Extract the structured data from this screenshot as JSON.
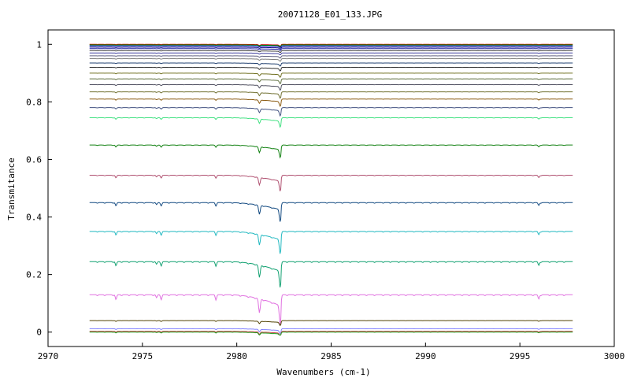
{
  "chart_data": {
    "type": "line",
    "title": "20071128_E01_133.JPG",
    "xlabel": "Wavenumbers (cm-1)",
    "ylabel": "Transmitance",
    "xlim": [
      2970,
      3000
    ],
    "ylim": [
      -0.05,
      1.05
    ],
    "xticks": [
      2970,
      2975,
      2980,
      2985,
      2990,
      2995,
      3000
    ],
    "xtick_labels": [
      "2970",
      "2975",
      "2980",
      "2985",
      "2990",
      "2995",
      "3000"
    ],
    "yticks": [
      0,
      0.2,
      0.4,
      0.6,
      0.8,
      1
    ],
    "ytick_labels": [
      "0",
      "0.2",
      "0.4",
      "0.6",
      "0.8",
      "1"
    ],
    "x_range_data": [
      2972.2,
      2997.8
    ],
    "grid": false,
    "legend": "none",
    "absorption_lines_cm1": [
      2973.6,
      2975.7,
      2976.0,
      2978.9,
      2981.2,
      2982.3,
      2996.0
    ],
    "series": [
      {
        "baseline": 1.0,
        "color": "#d00000"
      },
      {
        "baseline": 0.998,
        "color": "#00a000"
      },
      {
        "baseline": 0.995,
        "color": "#0000c0"
      },
      {
        "baseline": 0.99,
        "color": "#000080"
      },
      {
        "baseline": 0.985,
        "color": "#1a1aa0"
      },
      {
        "baseline": 0.978,
        "color": "#404040"
      },
      {
        "baseline": 0.97,
        "color": "#4040a0"
      },
      {
        "baseline": 0.96,
        "color": "#606080"
      },
      {
        "baseline": 0.95,
        "color": "#808080"
      },
      {
        "baseline": 0.935,
        "color": "#204070"
      },
      {
        "baseline": 0.92,
        "color": "#303030"
      },
      {
        "baseline": 0.9,
        "color": "#707020"
      },
      {
        "baseline": 0.88,
        "color": "#607040"
      },
      {
        "baseline": 0.86,
        "color": "#505060"
      },
      {
        "baseline": 0.835,
        "color": "#707030"
      },
      {
        "baseline": 0.81,
        "color": "#8a5a10"
      },
      {
        "baseline": 0.78,
        "color": "#405080"
      },
      {
        "baseline": 0.745,
        "color": "#40e080"
      },
      {
        "baseline": 0.65,
        "color": "#108010"
      },
      {
        "baseline": 0.545,
        "color": "#b05070"
      },
      {
        "baseline": 0.45,
        "color": "#104880"
      },
      {
        "baseline": 0.35,
        "color": "#20b8c0"
      },
      {
        "baseline": 0.245,
        "color": "#10a070"
      },
      {
        "baseline": 0.13,
        "color": "#e070e0"
      },
      {
        "baseline": 0.04,
        "color": "#504000"
      },
      {
        "baseline": 0.012,
        "color": "#8080ff"
      },
      {
        "baseline": 0.003,
        "color": "#c04040"
      },
      {
        "baseline": 0.0,
        "color": "#20a020"
      }
    ]
  }
}
